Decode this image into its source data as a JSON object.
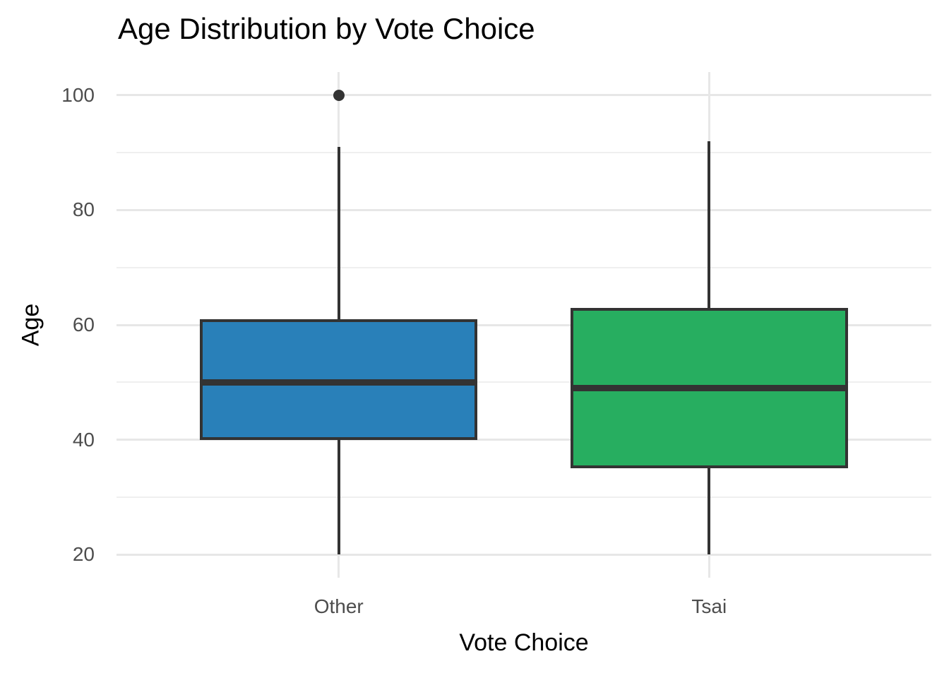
{
  "chart_data": {
    "type": "boxplot",
    "title": "Age Distribution by Vote Choice",
    "xlabel": "Vote Choice",
    "ylabel": "Age",
    "categories": [
      "Other",
      "Tsai"
    ],
    "ylim": [
      16,
      104
    ],
    "yticks": [
      20,
      40,
      60,
      80,
      100
    ],
    "yticks_minor": [
      30,
      50,
      70,
      90
    ],
    "grid": true,
    "legend": "none",
    "series": [
      {
        "category": "Other",
        "whisker_low": 20,
        "q1": 40,
        "median": 50,
        "q3": 61,
        "whisker_high": 91,
        "outliers": [
          100
        ],
        "fill": "#2980B9"
      },
      {
        "category": "Tsai",
        "whisker_low": 20,
        "q1": 35,
        "median": 49,
        "q3": 63,
        "whisker_high": 92,
        "outliers": [],
        "fill": "#27AE60"
      }
    ],
    "colors": {
      "box_border": "#333333",
      "median": "#333333",
      "whisker": "#333333",
      "outlier": "#333333",
      "grid_major": "#e7e7e7",
      "grid_minor": "#efefef",
      "tick_label": "#4d4d4d",
      "axis_title": "#000000",
      "title": "#000000",
      "background": "#ffffff"
    }
  }
}
